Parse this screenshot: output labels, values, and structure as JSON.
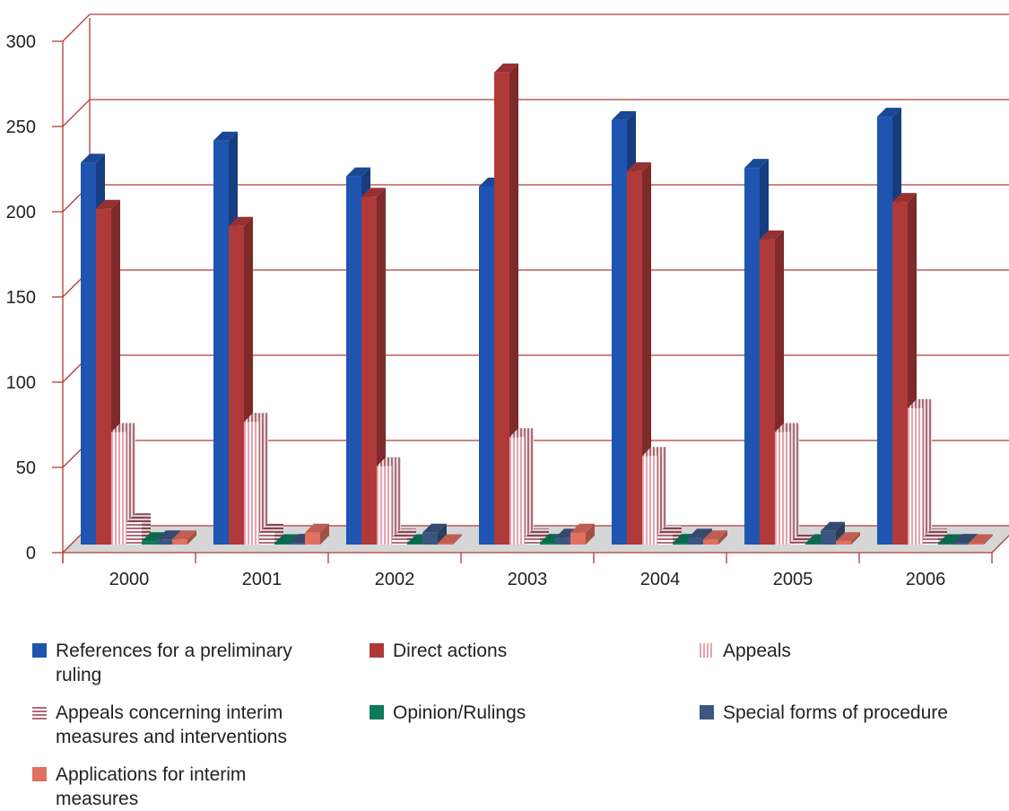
{
  "chart_data": {
    "type": "bar",
    "title": "",
    "xlabel": "",
    "ylabel": "",
    "ylim": [
      0,
      300
    ],
    "yticks": [
      0,
      50,
      100,
      150,
      200,
      250,
      300
    ],
    "grid": true,
    "three_d": true,
    "legend_position": "bottom",
    "categories": [
      "2000",
      "2001",
      "2002",
      "2003",
      "2004",
      "2005",
      "2006"
    ],
    "series": [
      {
        "name": "References for a preliminary ruling",
        "color": "#1f55b0",
        "pattern": "solid",
        "values": [
          224,
          237,
          216,
          210,
          249,
          221,
          251
        ]
      },
      {
        "name": "Direct actions",
        "color": "#b03a3a",
        "pattern": "solid",
        "values": [
          197,
          187,
          204,
          277,
          219,
          179,
          201
        ]
      },
      {
        "name": "Appeals",
        "color": "#e6a3ae",
        "pattern": "vertical-stripes",
        "values": [
          66,
          72,
          46,
          63,
          52,
          66,
          80
        ]
      },
      {
        "name": "Appeals concerning interim measures and interventions",
        "color": "#b06a78",
        "pattern": "horizontal-stripes",
        "values": [
          13,
          7,
          4,
          4,
          6,
          1,
          4
        ]
      },
      {
        "name": "Opinion/Rulings",
        "color": "#0d7a5a",
        "pattern": "solid",
        "values": [
          2,
          0,
          0,
          1,
          1,
          0,
          0
        ]
      },
      {
        "name": "Special forms of procedure",
        "color": "#3d5680",
        "pattern": "solid",
        "values": [
          3,
          1,
          7,
          4,
          4,
          8,
          1
        ]
      },
      {
        "name": "Applications for interim measures",
        "color": "#e0705f",
        "pattern": "solid",
        "values": [
          3,
          7,
          0,
          7,
          3,
          2,
          0
        ]
      }
    ]
  }
}
